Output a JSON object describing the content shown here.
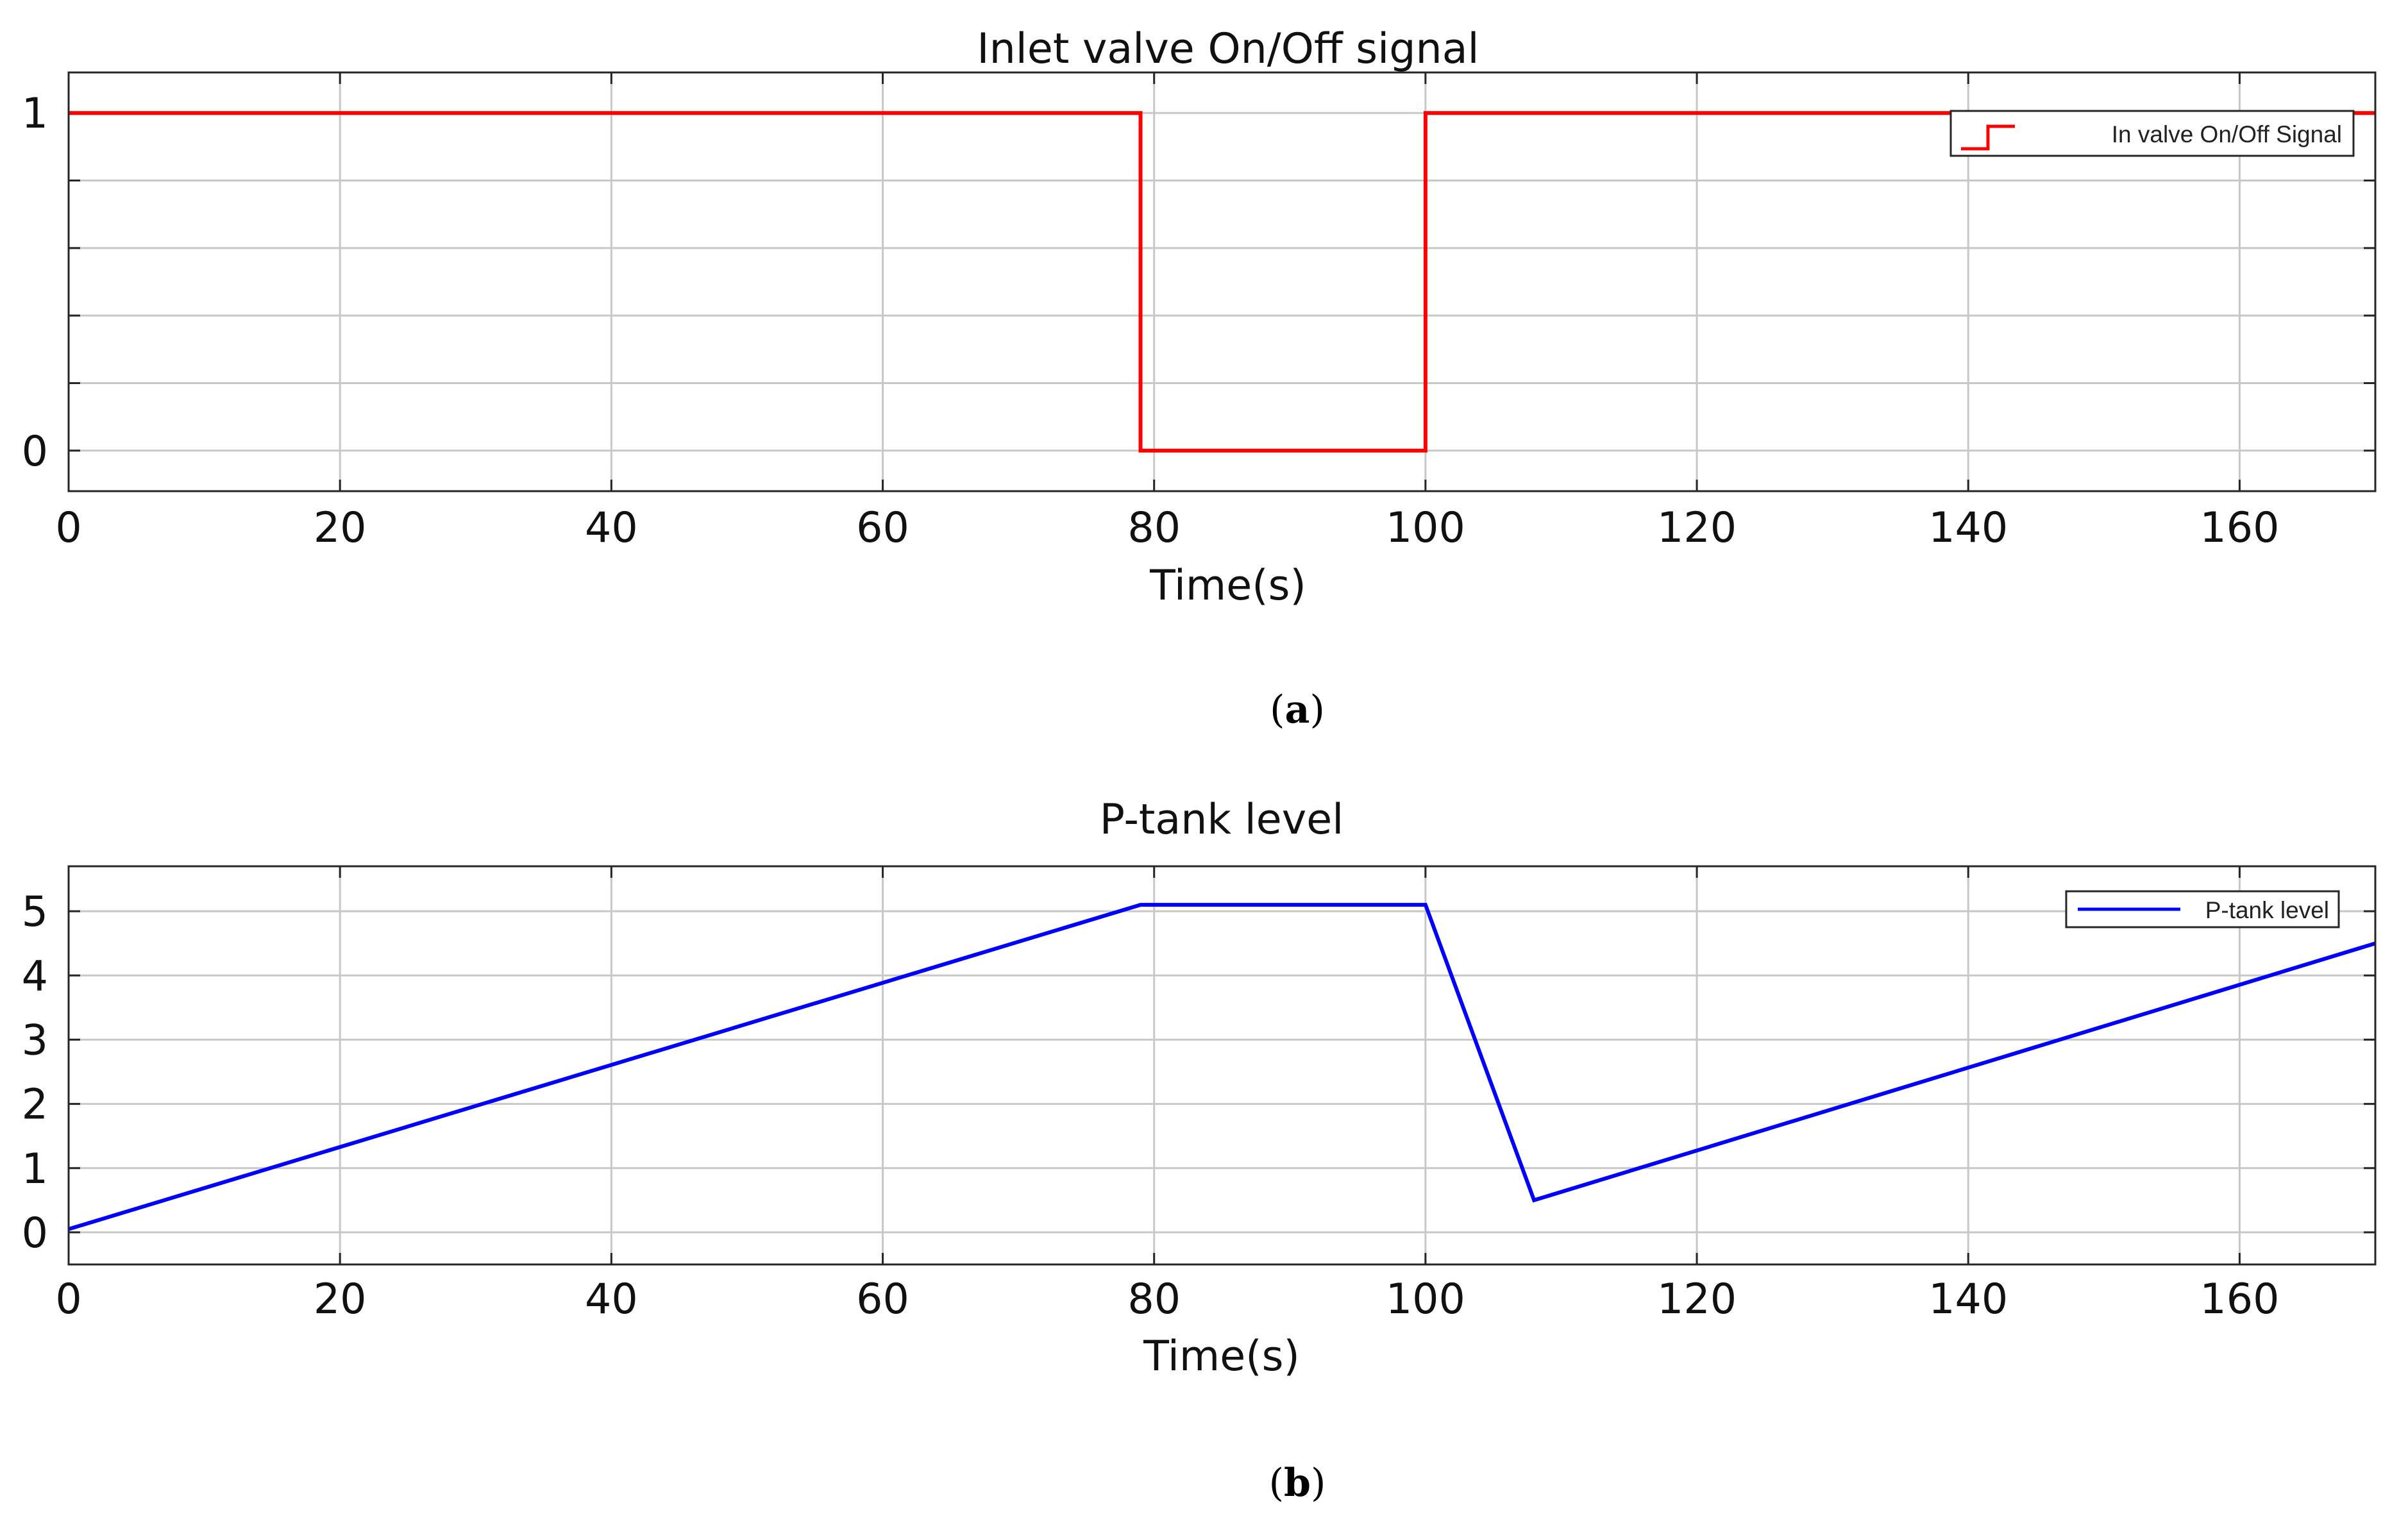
{
  "chart_data": [
    {
      "type": "line",
      "title": "Inlet valve On/Off signal",
      "xlabel": "Time(s)",
      "ylabel": "",
      "xlim": [
        0,
        170
      ],
      "ylim": [
        -0.12,
        1.12
      ],
      "x_ticks": [
        0,
        20,
        40,
        60,
        80,
        100,
        120,
        140,
        160
      ],
      "y_ticks": [
        0,
        1
      ],
      "y_gridlines": [
        0,
        0.2,
        0.4,
        0.6,
        0.8,
        1
      ],
      "grid": true,
      "legend": "top-right",
      "caption": "a",
      "series": [
        {
          "name": "In valve On/Off Signal",
          "color": "#ff0000",
          "x": [
            0,
            79,
            79,
            100,
            100,
            170
          ],
          "y": [
            1,
            1,
            0,
            0,
            1,
            1
          ]
        }
      ]
    },
    {
      "type": "line",
      "title": "P-tank level",
      "xlabel": "Time(s)",
      "ylabel": "",
      "xlim": [
        0,
        170
      ],
      "ylim": [
        -0.5,
        5.7
      ],
      "x_ticks": [
        0,
        20,
        40,
        60,
        80,
        100,
        120,
        140,
        160
      ],
      "y_ticks": [
        0,
        1,
        2,
        3,
        4,
        5
      ],
      "y_gridlines": [
        0,
        1,
        2,
        3,
        4,
        5
      ],
      "grid": true,
      "legend": "top-right",
      "caption": "b",
      "series": [
        {
          "name": "P-tank level",
          "color": "#0000ff",
          "x": [
            0,
            79,
            100,
            108,
            170
          ],
          "y": [
            0.05,
            5.1,
            5.1,
            0.5,
            4.5
          ]
        }
      ]
    }
  ]
}
